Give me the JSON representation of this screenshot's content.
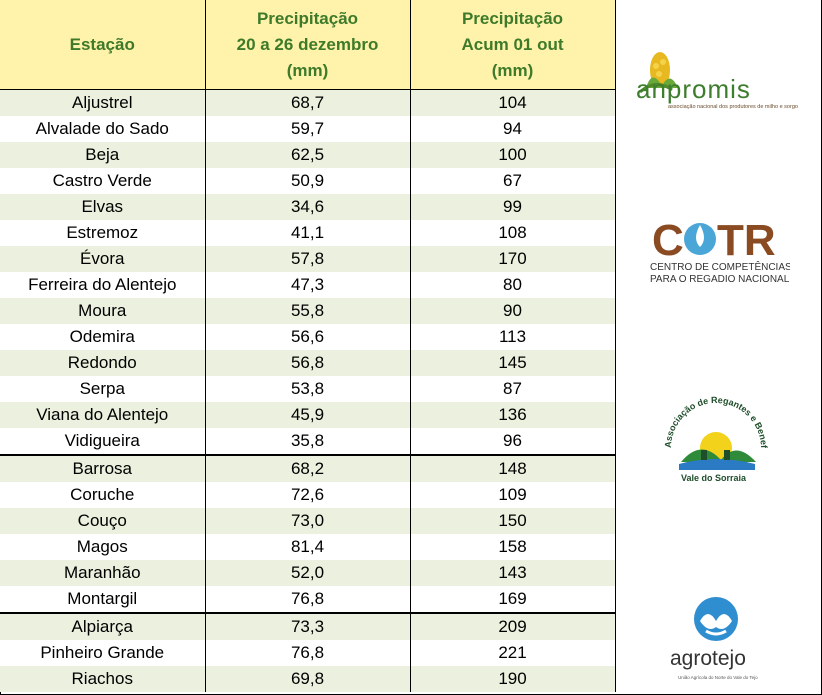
{
  "header": {
    "col1": "Estação",
    "col2": [
      "Precipitação",
      "20 a 26 dezembro",
      "(mm)"
    ],
    "col3": [
      "Precipitação",
      "Acum 01 out",
      "(mm)"
    ]
  },
  "rows": [
    {
      "station": "Aljustrel",
      "week": "68,7",
      "acum": "104"
    },
    {
      "station": "Alvalade do Sado",
      "week": "59,7",
      "acum": "94"
    },
    {
      "station": "Beja",
      "week": "62,5",
      "acum": "100"
    },
    {
      "station": "Castro Verde",
      "week": "50,9",
      "acum": "67"
    },
    {
      "station": "Elvas",
      "week": "34,6",
      "acum": "99"
    },
    {
      "station": "Estremoz",
      "week": "41,1",
      "acum": "108"
    },
    {
      "station": "Évora",
      "week": "57,8",
      "acum": "170"
    },
    {
      "station": "Ferreira do Alentejo",
      "week": "47,3",
      "acum": "80"
    },
    {
      "station": "Moura",
      "week": "55,8",
      "acum": "90"
    },
    {
      "station": "Odemira",
      "week": "56,6",
      "acum": "113"
    },
    {
      "station": "Redondo",
      "week": "56,8",
      "acum": "145"
    },
    {
      "station": "Serpa",
      "week": "53,8",
      "acum": "87"
    },
    {
      "station": "Viana do Alentejo",
      "week": "45,9",
      "acum": "136"
    },
    {
      "station": "Vidigueira",
      "week": "35,8",
      "acum": "96"
    },
    {
      "station": "Barrosa",
      "week": "68,2",
      "acum": "148"
    },
    {
      "station": "Coruche",
      "week": "72,6",
      "acum": "109"
    },
    {
      "station": "Couço",
      "week": "73,0",
      "acum": "150"
    },
    {
      "station": "Magos",
      "week": "81,4",
      "acum": "158"
    },
    {
      "station": "Maranhão",
      "week": "52,0",
      "acum": "143"
    },
    {
      "station": "Montargil",
      "week": "76,8",
      "acum": "169"
    },
    {
      "station": "Alpiarça",
      "week": "73,3",
      "acum": "209"
    },
    {
      "station": "Pinheiro Grande",
      "week": "76,8",
      "acum": "221"
    },
    {
      "station": "Riachos",
      "week": "69,8",
      "acum": "190"
    }
  ],
  "group_starts": [
    14,
    20
  ],
  "logos": {
    "anpromis": {
      "name": "anpromis",
      "tagline": "associação nacional dos produtores de milho e sorgo"
    },
    "cotr": {
      "name": "COTR",
      "line1": "CENTRO DE COMPETÊNCIAS",
      "line2": "PARA O REGADIO NACIONAL"
    },
    "sorraia": {
      "arc": "Associação de Regantes e Beneficiários do",
      "bottom": "Vale do Sorraia"
    },
    "agrotejo": {
      "name": "agrotejo",
      "tagline": "União Agrícola do Norte do Vale do Tejo"
    }
  },
  "colors": {
    "header_bg": "#FFF2AA",
    "header_text": "#3D7A2A",
    "stripe": "#EBF1DE"
  }
}
